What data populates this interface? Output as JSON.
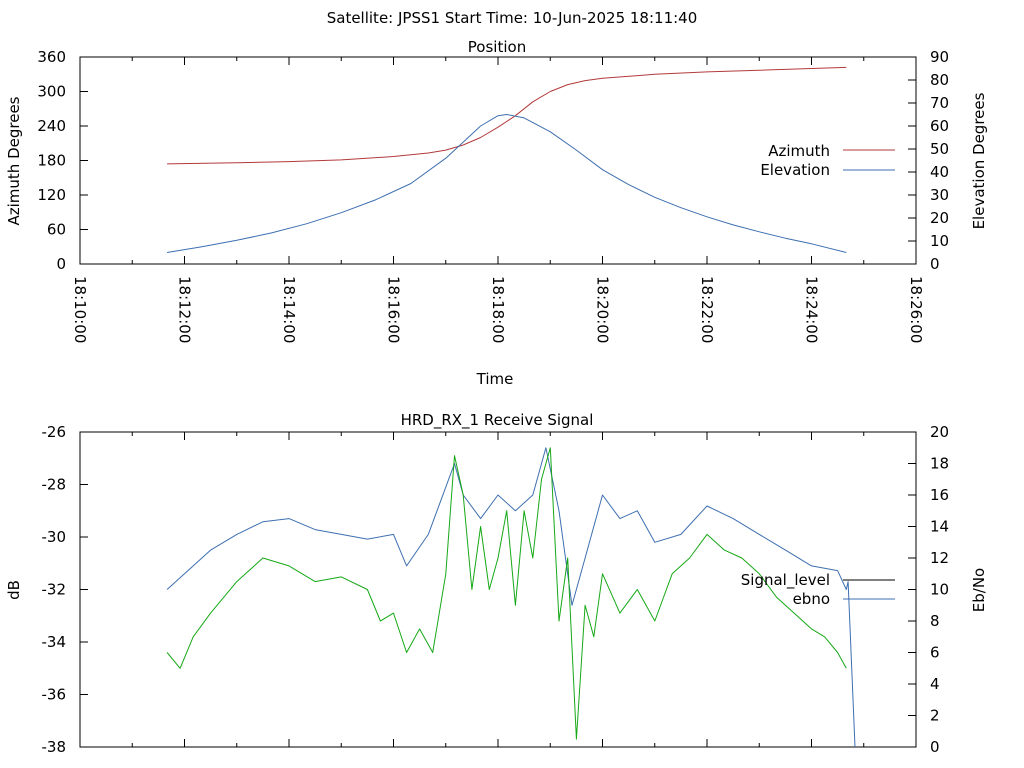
{
  "figure_title": "Satellite: JPSS1    Start Time: 10-Jun-2025 18:11:40",
  "chart_data": [
    {
      "type": "line",
      "title": "Position",
      "xlabel": "Time",
      "ylabel": "Azimuth Degrees",
      "y2label": "Elevation Degrees",
      "x_ticks": [
        "18:10:00",
        "18:12:00",
        "18:14:00",
        "18:16:00",
        "18:18:00",
        "18:20:00",
        "18:22:00",
        "18:24:00",
        "18:26:00"
      ],
      "xlim": [
        "18:10:00",
        "18:26:00"
      ],
      "ylim": [
        0,
        360
      ],
      "y_ticks": [
        0,
        60,
        120,
        180,
        240,
        300,
        360
      ],
      "y2lim": [
        0,
        90
      ],
      "y2_ticks": [
        0,
        10,
        20,
        30,
        40,
        50,
        60,
        70,
        80,
        90
      ],
      "legend_position": "right",
      "grid": false,
      "series": [
        {
          "name": "Azimuth",
          "axis": "left",
          "color": "#b33a3a",
          "x": [
            "18:11:40",
            "18:13:00",
            "18:14:00",
            "18:15:00",
            "18:16:00",
            "18:16:40",
            "18:17:00",
            "18:17:20",
            "18:17:40",
            "18:18:00",
            "18:18:20",
            "18:18:40",
            "18:19:00",
            "18:19:20",
            "18:19:40",
            "18:20:00",
            "18:21:00",
            "18:22:00",
            "18:23:00",
            "18:24:00",
            "18:24:40"
          ],
          "values": [
            174,
            176,
            178,
            181,
            187,
            193,
            198,
            207,
            220,
            238,
            258,
            282,
            300,
            312,
            319,
            323,
            330,
            334,
            337,
            340,
            342
          ]
        },
        {
          "name": "Elevation",
          "axis": "right",
          "color": "#3d6fb0",
          "x": [
            "18:11:40",
            "18:12:20",
            "18:13:00",
            "18:13:40",
            "18:14:20",
            "18:15:00",
            "18:15:40",
            "18:16:20",
            "18:17:00",
            "18:17:40",
            "18:18:00",
            "18:18:10",
            "18:18:30",
            "18:19:00",
            "18:19:30",
            "18:20:00",
            "18:20:30",
            "18:21:00",
            "18:21:30",
            "18:22:00",
            "18:22:30",
            "18:23:00",
            "18:23:30",
            "18:24:00",
            "18:24:40"
          ],
          "values": [
            5,
            7.5,
            10.3,
            13.5,
            17.5,
            22.3,
            28,
            35,
            46,
            60,
            64.5,
            65,
            63.5,
            57.5,
            49.5,
            41,
            34.5,
            29,
            24.5,
            20.5,
            17,
            14,
            11.2,
            8.8,
            5
          ]
        }
      ]
    },
    {
      "type": "line",
      "title": "HRD_RX_1 Receive Signal",
      "ylabel": "dB",
      "y2label": "Eb/No",
      "xlim": [
        "18:10:00",
        "18:26:00"
      ],
      "ylim": [
        -38,
        -26
      ],
      "y_ticks": [
        -38,
        -36,
        -34,
        -32,
        -30,
        -28,
        -26
      ],
      "y2lim": [
        0,
        20
      ],
      "y2_ticks": [
        0,
        2,
        4,
        6,
        8,
        10,
        12,
        14,
        16,
        18,
        20
      ],
      "legend_position": "right",
      "grid": false,
      "series": [
        {
          "name": "Signal_level",
          "axis": "left",
          "color": "#000000",
          "x": [],
          "values": []
        },
        {
          "name": "ebno",
          "axis": "right",
          "color": "#3d6fb0",
          "x": [
            "18:11:40",
            "18:12:00",
            "18:12:30",
            "18:13:00",
            "18:13:30",
            "18:14:00",
            "18:14:30",
            "18:15:00",
            "18:15:30",
            "18:16:00",
            "18:16:15",
            "18:16:40",
            "18:17:00",
            "18:17:10",
            "18:17:20",
            "18:17:40",
            "18:18:00",
            "18:18:20",
            "18:18:40",
            "18:18:55",
            "18:19:10",
            "18:19:25",
            "18:19:40",
            "18:20:00",
            "18:20:20",
            "18:20:40",
            "18:21:00",
            "18:21:30",
            "18:22:00",
            "18:22:30",
            "18:23:00",
            "18:23:30",
            "18:24:00",
            "18:24:30",
            "18:24:40",
            "18:24:42",
            "18:24:50"
          ],
          "values": [
            10,
            11,
            12.5,
            13.5,
            14.3,
            14.5,
            13.8,
            13.5,
            13.2,
            13.5,
            11.5,
            13.5,
            16.5,
            18,
            16,
            14.5,
            16,
            15,
            16,
            19,
            15,
            9,
            12,
            16,
            14.5,
            15,
            13,
            13.5,
            15.3,
            14.5,
            13.5,
            12.5,
            11.5,
            11.2,
            10,
            10.5,
            0
          ]
        },
        {
          "name": "",
          "axis": "right",
          "color": "#16a816",
          "x": [
            "18:11:40",
            "18:11:55",
            "18:12:10",
            "18:12:30",
            "18:13:00",
            "18:13:30",
            "18:14:00",
            "18:14:30",
            "18:15:00",
            "18:15:30",
            "18:15:45",
            "18:16:00",
            "18:16:15",
            "18:16:30",
            "18:16:45",
            "18:17:00",
            "18:17:10",
            "18:17:20",
            "18:17:30",
            "18:17:40",
            "18:17:50",
            "18:18:00",
            "18:18:10",
            "18:18:20",
            "18:18:30",
            "18:18:40",
            "18:18:50",
            "18:19:00",
            "18:19:10",
            "18:19:20",
            "18:19:30",
            "18:19:40",
            "18:19:50",
            "18:20:00",
            "18:20:20",
            "18:20:40",
            "18:21:00",
            "18:21:20",
            "18:21:40",
            "18:22:00",
            "18:22:20",
            "18:22:40",
            "18:23:00",
            "18:23:20",
            "18:23:40",
            "18:24:00",
            "18:24:15",
            "18:24:30",
            "18:24:40"
          ],
          "values": [
            6,
            5,
            7,
            8.5,
            10.5,
            12,
            11.5,
            10.5,
            10.8,
            10,
            8,
            8.5,
            6,
            7.5,
            6,
            11,
            18.5,
            16,
            10,
            14,
            10,
            12,
            15,
            9,
            15,
            12,
            17,
            19,
            8,
            12,
            0.5,
            9,
            7,
            11,
            8.5,
            10,
            8,
            11,
            12,
            13.5,
            12.5,
            12,
            11,
            9.5,
            8.5,
            7.5,
            7,
            6,
            5
          ]
        }
      ]
    }
  ]
}
